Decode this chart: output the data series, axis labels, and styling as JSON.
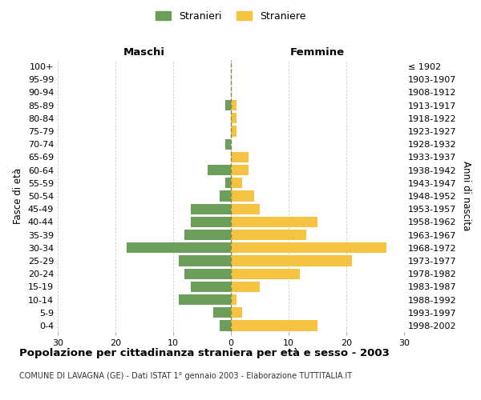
{
  "age_groups": [
    "0-4",
    "5-9",
    "10-14",
    "15-19",
    "20-24",
    "25-29",
    "30-34",
    "35-39",
    "40-44",
    "45-49",
    "50-54",
    "55-59",
    "60-64",
    "65-69",
    "70-74",
    "75-79",
    "80-84",
    "85-89",
    "90-94",
    "95-99",
    "100+"
  ],
  "birth_years": [
    "1998-2002",
    "1993-1997",
    "1988-1992",
    "1983-1987",
    "1978-1982",
    "1973-1977",
    "1968-1972",
    "1963-1967",
    "1958-1962",
    "1953-1957",
    "1948-1952",
    "1943-1947",
    "1938-1942",
    "1933-1937",
    "1928-1932",
    "1923-1927",
    "1918-1922",
    "1913-1917",
    "1908-1912",
    "1903-1907",
    "≤ 1902"
  ],
  "maschi": [
    2,
    3,
    9,
    7,
    8,
    9,
    18,
    8,
    7,
    7,
    2,
    1,
    4,
    0,
    1,
    0,
    0,
    1,
    0,
    0,
    0
  ],
  "femmine": [
    15,
    2,
    1,
    5,
    12,
    21,
    27,
    13,
    15,
    5,
    4,
    2,
    3,
    3,
    0,
    1,
    1,
    1,
    0,
    0,
    0
  ],
  "maschi_color": "#6a9e5a",
  "femmine_color": "#f5c242",
  "background_color": "#ffffff",
  "grid_color": "#cccccc",
  "title": "Popolazione per cittadinanza straniera per età e sesso - 2003",
  "subtitle": "COMUNE DI LAVAGNA (GE) - Dati ISTAT 1° gennaio 2003 - Elaborazione TUTTITALIA.IT",
  "ylabel_left": "Fasce di età",
  "ylabel_right": "Anni di nascita",
  "xlabel_left": "Maschi",
  "xlabel_right": "Femmine",
  "legend_maschi": "Stranieri",
  "legend_femmine": "Straniere",
  "xlim": 30
}
